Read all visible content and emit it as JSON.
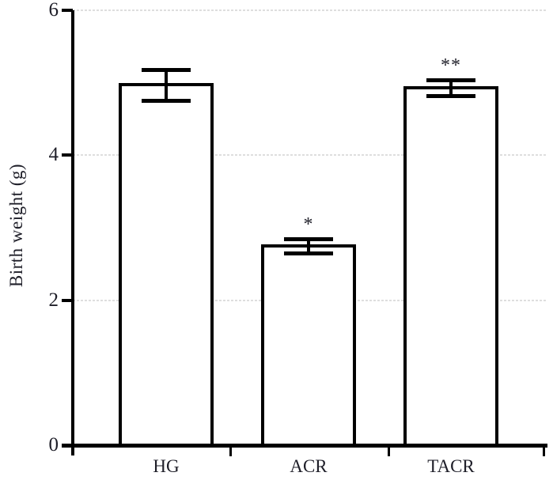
{
  "chart_data": {
    "type": "bar",
    "title": "",
    "xlabel": "",
    "ylabel": "Birth weight (g)",
    "categories": [
      "HG",
      "ACR",
      "TACR"
    ],
    "values": [
      4.97,
      2.75,
      4.93
    ],
    "error_bars": [
      0.21,
      0.1,
      0.11
    ],
    "significance_labels": [
      "",
      "*",
      "**"
    ],
    "yticks": [
      0,
      2,
      4,
      6
    ],
    "ylim": [
      0,
      6
    ],
    "grid": "horizontal dashed gridlines at y = 2, 4, 6",
    "legend": "none",
    "colors": {
      "bar_fill": "#ffffff",
      "bar_border": "#000000",
      "axis": "#000000",
      "gridline": "#dedede",
      "text": "#1e1e28"
    }
  }
}
